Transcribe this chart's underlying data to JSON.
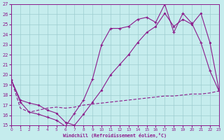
{
  "xlabel": "Windchill (Refroidissement éolien,°C)",
  "xlim": [
    0,
    23
  ],
  "ylim": [
    15,
    27
  ],
  "background_color": "#c5eced",
  "grid_color": "#9dcdd0",
  "line_color": "#8b1a8b",
  "line1_x": [
    0,
    1,
    2,
    3,
    4,
    5,
    6,
    7,
    8,
    9,
    10,
    11,
    12,
    13,
    14,
    15,
    16,
    17,
    18,
    19,
    20,
    21,
    22,
    23
  ],
  "line1_y": [
    19.5,
    17.3,
    16.3,
    16.1,
    15.8,
    15.5,
    14.9,
    16.2,
    17.5,
    19.6,
    23.0,
    24.6,
    24.6,
    24.8,
    25.5,
    25.7,
    25.2,
    27.0,
    24.2,
    26.1,
    25.1,
    23.2,
    20.4,
    18.4
  ],
  "line2_x": [
    0,
    1,
    2,
    3,
    4,
    5,
    6,
    7,
    8,
    9,
    10,
    11,
    12,
    13,
    14,
    15,
    16,
    17,
    18,
    19,
    20,
    21,
    22,
    23
  ],
  "line2_y": [
    19.5,
    17.5,
    17.2,
    17.0,
    16.5,
    16.2,
    15.3,
    15.0,
    16.1,
    17.3,
    18.5,
    20.0,
    21.0,
    22.0,
    23.2,
    24.2,
    24.8,
    26.1,
    24.8,
    25.5,
    25.0,
    26.1,
    23.2,
    18.5
  ],
  "line3_x": [
    0,
    1,
    2,
    3,
    4,
    5,
    6,
    7,
    8,
    9,
    10,
    11,
    12,
    13,
    14,
    15,
    16,
    17,
    18,
    19,
    20,
    21,
    22,
    23
  ],
  "line3_y": [
    19.5,
    16.7,
    16.3,
    16.5,
    16.7,
    16.8,
    16.7,
    16.8,
    17.0,
    17.1,
    17.2,
    17.3,
    17.4,
    17.5,
    17.6,
    17.7,
    17.8,
    17.9,
    17.9,
    18.0,
    18.1,
    18.1,
    18.2,
    18.4
  ]
}
